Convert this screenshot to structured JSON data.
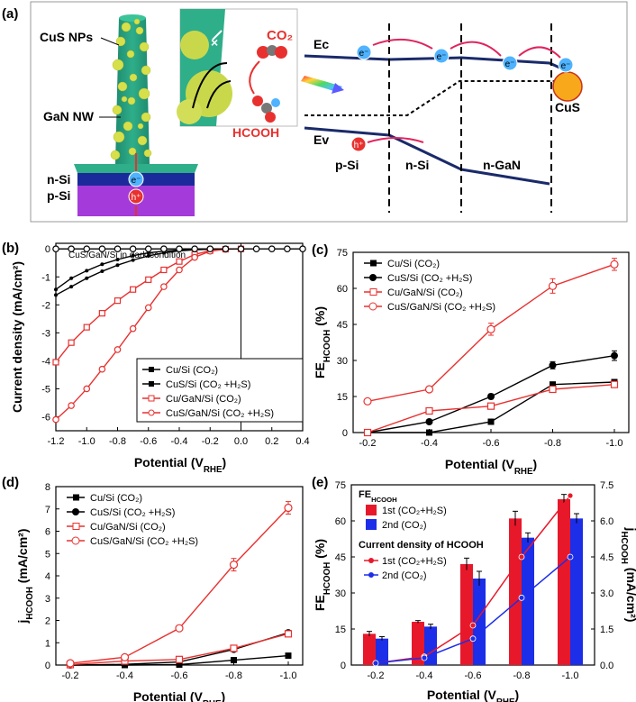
{
  "panel_a": {
    "label": "(a)",
    "structure_labels": [
      "CuS NPs",
      "GaN NW",
      "n-Si",
      "p-Si"
    ],
    "carriers": {
      "electron": "e⁻",
      "hole": "h⁺"
    },
    "reaction": {
      "reactant": "CO₂",
      "product": "HCOOH"
    },
    "band_labels": {
      "conduction": "Ec",
      "valence": "Ev",
      "regions": [
        "p-Si",
        "n-Si",
        "n-GaN"
      ],
      "cocatalyst": "CuS"
    }
  },
  "chart_data": [
    {
      "panel": "(b)",
      "type": "line",
      "xlabel": "Potential (V",
      "xlabel_sub": "RHE",
      "xlabel_end": ")",
      "ylabel": "Current density (mA/cm²)",
      "xlim": [
        -1.2,
        0.4
      ],
      "ylim": [
        -6.5,
        0.2
      ],
      "xticks": [
        "-1.2",
        "-1.0",
        "-0.8",
        "-0.6",
        "-0.4",
        "-0.2",
        "0.0",
        "0.2",
        "0.4"
      ],
      "yticks": [
        "0",
        "-1",
        "-2",
        "-3",
        "-4",
        "-5",
        "-6"
      ],
      "annotation": "CuS/GaN/Si in dark condition",
      "series": [
        {
          "name": "Cu/Si (CO₂)",
          "color": "#000000",
          "marker": "none",
          "x": [
            -1.2,
            -1.1,
            -1.0,
            -0.9,
            -0.8,
            -0.7,
            -0.6,
            -0.5,
            -0.4,
            -0.3,
            -0.2,
            -0.1,
            0.0
          ],
          "y": [
            -1.45,
            -1.05,
            -0.78,
            -0.55,
            -0.38,
            -0.24,
            -0.14,
            -0.08,
            -0.04,
            -0.02,
            -0.01,
            0,
            0
          ]
        },
        {
          "name": "CuS/Si (CO₂ +H₂S)",
          "color": "#000000",
          "marker": "none",
          "x": [
            -1.2,
            -1.1,
            -1.0,
            -0.9,
            -0.8,
            -0.7,
            -0.6,
            -0.5,
            -0.4,
            -0.3,
            -0.2,
            -0.1,
            0.0
          ],
          "y": [
            -1.65,
            -1.35,
            -1.05,
            -0.8,
            -0.58,
            -0.4,
            -0.25,
            -0.14,
            -0.07,
            -0.03,
            -0.01,
            0,
            0
          ]
        },
        {
          "name": "Cu/GaN/Si (CO₂)",
          "color": "#e8312f",
          "marker": "square",
          "x": [
            -1.2,
            -1.1,
            -1.0,
            -0.9,
            -0.8,
            -0.7,
            -0.6,
            -0.5,
            -0.4,
            -0.3,
            -0.2,
            -0.1,
            0.0
          ],
          "y": [
            -4.05,
            -3.35,
            -2.8,
            -2.3,
            -1.85,
            -1.45,
            -1.1,
            -0.75,
            -0.45,
            -0.2,
            -0.06,
            -0.01,
            0
          ]
        },
        {
          "name": "CuS/GaN/Si (CO₂ +H₂S)",
          "color": "#e8312f",
          "marker": "circle",
          "x": [
            -1.2,
            -1.1,
            -1.0,
            -0.9,
            -0.8,
            -0.7,
            -0.6,
            -0.5,
            -0.4,
            -0.3,
            -0.2,
            -0.1,
            0.0
          ],
          "y": [
            -6.1,
            -5.6,
            -5.0,
            -4.3,
            -3.6,
            -2.85,
            -2.1,
            -1.35,
            -0.75,
            -0.3,
            -0.08,
            -0.01,
            0
          ]
        },
        {
          "name": "dark",
          "color": "#000000",
          "marker": "open-circle",
          "x": [
            -1.2,
            -1.1,
            -1.0,
            -0.9,
            -0.8,
            -0.7,
            -0.6,
            -0.5,
            -0.4,
            -0.3,
            -0.2,
            -0.1,
            0.0,
            0.1,
            0.2,
            0.3,
            0.4
          ],
          "y": [
            0,
            0,
            0,
            0,
            0,
            0,
            0,
            0,
            0,
            0,
            0,
            0,
            0,
            0,
            0,
            0,
            0
          ]
        }
      ]
    },
    {
      "panel": "(c)",
      "type": "line",
      "xlabel": "Potential (V",
      "xlabel_sub": "RHE",
      "xlabel_end": ")",
      "ylabel": "FE",
      "ylabel_sub": "HCOOH",
      "ylabel_end": " (%)",
      "xlim": [
        -0.2,
        -1.0
      ],
      "ylim": [
        0,
        75
      ],
      "xticks": [
        "-0.2",
        "-0.4",
        "-0.6",
        "-0.8",
        "-1.0"
      ],
      "yticks": [
        "0",
        "15",
        "30",
        "45",
        "60",
        "75"
      ],
      "x": [
        -0.2,
        -0.4,
        -0.6,
        -0.8,
        -1.0
      ],
      "series": [
        {
          "name": "Cu/Si (CO₂)",
          "color": "#000000",
          "marker": "square",
          "values": [
            0,
            0,
            4.5,
            20,
            21
          ],
          "err": [
            0,
            0,
            0.5,
            1,
            1
          ]
        },
        {
          "name": "CuS/Si (CO₂ +H₂S)",
          "color": "#000000",
          "marker": "circle",
          "values": [
            0,
            4.5,
            15,
            28,
            32
          ],
          "err": [
            0,
            0.5,
            1,
            1.5,
            2
          ]
        },
        {
          "name": "Cu/GaN/Si (CO₂)",
          "color": "#e8312f",
          "marker": "open-square",
          "values": [
            0,
            9,
            11,
            18,
            20
          ],
          "err": [
            0,
            0.5,
            1,
            1,
            1
          ]
        },
        {
          "name": "CuS/GaN/Si (CO₂ +H₂S)",
          "color": "#e8312f",
          "marker": "open-circle",
          "values": [
            13,
            18,
            43,
            61,
            70
          ],
          "err": [
            0.5,
            0.5,
            2.5,
            3,
            2.5
          ]
        }
      ]
    },
    {
      "panel": "(d)",
      "type": "line",
      "xlabel": "Potential (V",
      "xlabel_sub": "RHE",
      "xlabel_end": ")",
      "ylabel": "j",
      "ylabel_sub": "HCOOH",
      "ylabel_end": " (mA/cm²)",
      "xlim": [
        -0.2,
        -1.0
      ],
      "ylim": [
        0,
        8
      ],
      "xticks": [
        "-0.2",
        "-0.4",
        "-0.6",
        "-0.8",
        "-1.0"
      ],
      "yticks": [
        "0",
        "1",
        "2",
        "3",
        "4",
        "5",
        "6",
        "7",
        "8"
      ],
      "x": [
        -0.2,
        -0.4,
        -0.6,
        -0.8,
        -1.0
      ],
      "series": [
        {
          "name": "Cu/Si (CO₂)",
          "color": "#000000",
          "marker": "square",
          "values": [
            0,
            0,
            0.02,
            0.22,
            0.42
          ],
          "err": [
            0,
            0,
            0,
            0.03,
            0.05
          ]
        },
        {
          "name": "CuS/Si (CO₂ +H₂S)",
          "color": "#000000",
          "marker": "circle",
          "values": [
            0,
            0.03,
            0.14,
            0.7,
            1.45
          ],
          "err": [
            0,
            0,
            0.02,
            0.05,
            0.08
          ]
        },
        {
          "name": "Cu/GaN/Si (CO₂)",
          "color": "#e8312f",
          "marker": "open-square",
          "values": [
            0.02,
            0.18,
            0.25,
            0.75,
            1.4
          ],
          "err": [
            0,
            0.02,
            0.03,
            0.05,
            0.08
          ]
        },
        {
          "name": "CuS/GaN/Si (CO₂ +H₂S)",
          "color": "#e8312f",
          "marker": "open-circle",
          "values": [
            0.08,
            0.35,
            1.65,
            4.5,
            7.05
          ],
          "err": [
            0.02,
            0.03,
            0.08,
            0.28,
            0.28
          ]
        }
      ]
    },
    {
      "panel": "(e)",
      "type": "bar",
      "xlabel": "Potential (V",
      "xlabel_sub": "RHE",
      "xlabel_end": ")",
      "ylabel": "FE",
      "ylabel_sub": "HCOOH",
      "ylabel_end": " (%)",
      "ylabel_right": "j",
      "ylabel_right_sub": "HCOOH",
      "ylabel_right_end": " (mA/cm²)",
      "categories": [
        "-0.2",
        "-0.4",
        "-0.6",
        "-0.8",
        "-1.0"
      ],
      "ylim": [
        0,
        75
      ],
      "ylim_right": [
        0,
        7.5
      ],
      "yticks": [
        "0",
        "15",
        "30",
        "45",
        "60",
        "75"
      ],
      "yticks_right": [
        "0.0",
        "1.5",
        "3.0",
        "4.5",
        "6.0",
        "7.5"
      ],
      "legend_title_fe": "FE",
      "legend_title_fe_sub": "HCOOH",
      "legend_title_j": "Current density of HCOOH",
      "bars": [
        {
          "name": "1st (CO₂+H₂S)",
          "color": "#e8182b",
          "values": [
            13,
            18,
            42,
            61,
            69
          ],
          "err": [
            1,
            0.5,
            2.5,
            3,
            2
          ]
        },
        {
          "name": "2nd (CO₂)",
          "color": "#1c2ee8",
          "values": [
            11,
            16,
            36,
            53,
            61
          ],
          "err": [
            0.8,
            1,
            3,
            2,
            2
          ]
        }
      ],
      "lines": [
        {
          "name": "1st (CO₂+H₂S)",
          "color": "#e8182b",
          "values": [
            0.08,
            0.35,
            1.65,
            4.5,
            7.05
          ]
        },
        {
          "name": "2nd (CO₂)",
          "color": "#1c2ee8",
          "values": [
            0.08,
            0.3,
            1.1,
            2.8,
            4.5
          ]
        }
      ]
    }
  ],
  "panel_labels": [
    "(b)",
    "(c)",
    "(d)",
    "(e)"
  ]
}
